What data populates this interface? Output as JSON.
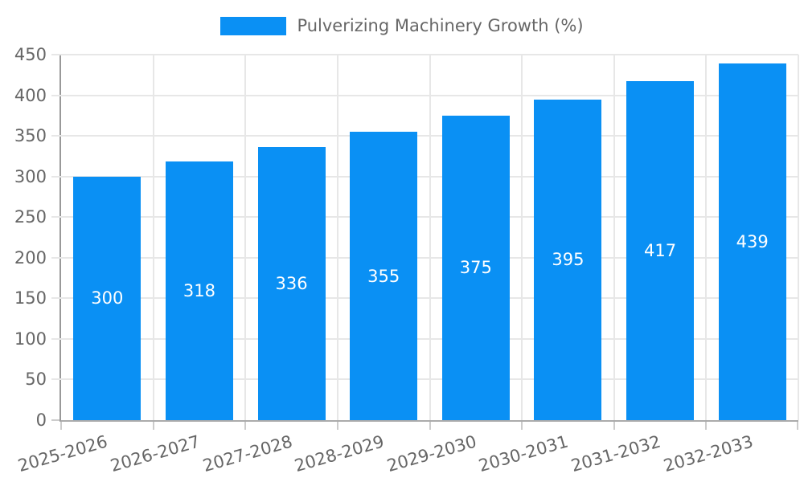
{
  "chart_data": {
    "type": "bar",
    "title": "",
    "legend": "Pulverizing Machinery Growth (%)",
    "legend_position": "top-center",
    "categories": [
      "2025-2026",
      "2026-2027",
      "2027-2028",
      "2028-2029",
      "2029-2030",
      "2030-2031",
      "2031-2032",
      "2032-2033"
    ],
    "values": [
      300,
      318,
      336,
      355,
      375,
      395,
      417,
      439
    ],
    "value_labels": [
      "300",
      "318",
      "336",
      "355",
      "375",
      "395",
      "417",
      "439"
    ],
    "xlabel": "",
    "ylabel": "",
    "ylim": [
      0,
      450
    ],
    "yticks": [
      0,
      50,
      100,
      150,
      200,
      250,
      300,
      350,
      400,
      450
    ],
    "grid": true,
    "value_label_placement": "center-inside"
  },
  "colors": {
    "bar": "#0a90f4",
    "grid": "#e7e7e7",
    "axis_y": "#999999",
    "axis_x": "#ababab",
    "tick": "#cccccc",
    "tick_text": "#666666",
    "legend_text": "#666666",
    "value_text": "#ffffff",
    "background": "#ffffff"
  }
}
